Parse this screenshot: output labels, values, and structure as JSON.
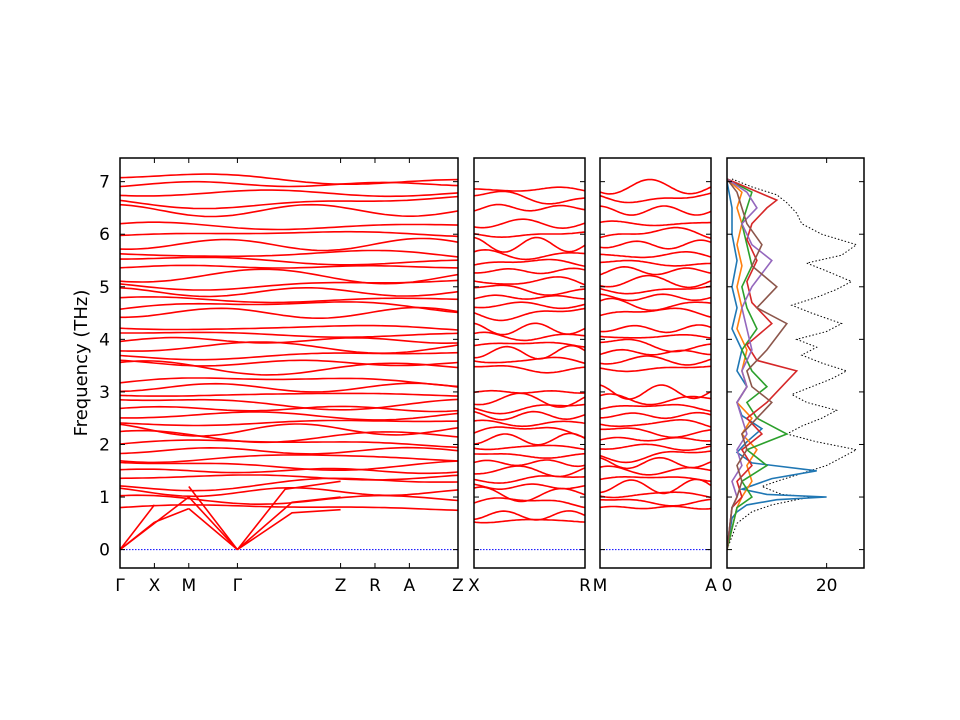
{
  "chart_data": {
    "type": "line",
    "title": "",
    "ylabel": "Frequency (THz)",
    "ylim": [
      -0.35,
      7.45
    ],
    "yticks": [
      0,
      1,
      2,
      3,
      4,
      5,
      6,
      7
    ],
    "colors": {
      "bands": "#ff0000",
      "zero_line": "#0000ff",
      "total_dos": "#000000",
      "pdos": [
        "#1f77b4",
        "#ff7f0e",
        "#2ca02c",
        "#d62728",
        "#9467bd",
        "#8c564b"
      ]
    },
    "panels": [
      {
        "name": "band-panel-1",
        "xticks": [
          {
            "label": "Γ",
            "pos": 0.0
          },
          {
            "label": "X",
            "pos": 0.5
          },
          {
            "label": "M",
            "pos": 1.0
          },
          {
            "label": "Γ",
            "pos": 1.707
          },
          {
            "label": "Z",
            "pos": 3.207
          },
          {
            "label": "R",
            "pos": 3.707
          },
          {
            "label": "A",
            "pos": 4.207
          },
          {
            "label": "Z",
            "pos": 4.914
          }
        ],
        "acoustic_branches": [
          {
            "x": [
              0,
              0.5
            ],
            "y": [
              0,
              0.52
            ]
          },
          {
            "x": [
              0,
              0.5
            ],
            "y": [
              0,
              0.85
            ]
          },
          {
            "x": [
              0,
              1.0
            ],
            "y": [
              0,
              1.0
            ]
          },
          {
            "x": [
              0.5,
              1.0
            ],
            "y": [
              0.52,
              0.78
            ]
          },
          {
            "x": [
              1.0,
              1.707
            ],
            "y": [
              0.78,
              0
            ]
          },
          {
            "x": [
              1.0,
              1.707
            ],
            "y": [
              1.0,
              0
            ]
          },
          {
            "x": [
              1.0,
              1.707
            ],
            "y": [
              1.2,
              0
            ]
          },
          {
            "x": [
              1.707,
              2.5,
              3.207
            ],
            "y": [
              0,
              0.7,
              0.76
            ]
          },
          {
            "x": [
              1.707,
              2.5,
              3.207
            ],
            "y": [
              0,
              0.9,
              1.0
            ]
          },
          {
            "x": [
              1.707,
              2.4,
              3.207
            ],
            "y": [
              0,
              1.15,
              1.3
            ]
          }
        ],
        "bands": [
          0.8,
          0.95,
          1.1,
          1.25,
          1.38,
          1.5,
          1.62,
          1.75,
          1.88,
          2.02,
          2.15,
          2.28,
          2.42,
          2.55,
          2.68,
          2.8,
          2.95,
          3.08,
          3.2,
          3.45,
          3.55,
          3.7,
          3.85,
          3.98,
          4.1,
          4.22,
          4.5,
          4.62,
          4.75,
          4.9,
          5.05,
          5.2,
          5.38,
          5.5,
          5.62,
          5.8,
          6.0,
          6.15,
          6.45,
          6.62,
          6.78,
          6.95,
          7.05
        ]
      },
      {
        "name": "band-panel-2",
        "xticks": [
          {
            "label": "X",
            "pos": 0.0
          },
          {
            "label": "R",
            "pos": 1.5
          }
        ],
        "acoustic_branches": [],
        "bands": [
          0.55,
          0.65,
          0.9,
          1.05,
          1.2,
          1.35,
          1.5,
          1.65,
          1.8,
          1.95,
          2.1,
          2.25,
          2.4,
          2.55,
          2.7,
          2.85,
          3.0,
          3.45,
          3.6,
          3.75,
          3.9,
          4.05,
          4.2,
          4.5,
          4.65,
          4.8,
          4.95,
          5.1,
          5.3,
          5.45,
          5.6,
          5.8,
          6.0,
          6.2,
          6.5,
          6.7,
          6.85
        ]
      },
      {
        "name": "band-panel-3",
        "xticks": [
          {
            "label": "M",
            "pos": 0.0
          },
          {
            "label": "A",
            "pos": 1.5
          }
        ],
        "acoustic_branches": [],
        "bands": [
          0.8,
          0.92,
          1.05,
          1.2,
          1.35,
          1.5,
          1.65,
          1.8,
          1.95,
          2.1,
          2.25,
          2.4,
          2.55,
          2.7,
          2.85,
          3.0,
          3.45,
          3.6,
          3.75,
          3.9,
          4.05,
          4.2,
          4.5,
          4.65,
          4.8,
          4.95,
          5.1,
          5.3,
          5.45,
          5.6,
          5.8,
          6.0,
          6.2,
          6.45,
          6.7,
          6.9
        ]
      }
    ],
    "dos_panel": {
      "name": "dos-panel",
      "xlim": [
        0,
        27.5
      ],
      "xticks": [
        0,
        20
      ],
      "total_dos": {
        "x": [
          0,
          2,
          5,
          9,
          14,
          17,
          11,
          7,
          10,
          15,
          20,
          23,
          26,
          18,
          12,
          15,
          19,
          22,
          16,
          13,
          17,
          21,
          24,
          19,
          15,
          18,
          14,
          20,
          23,
          17,
          13,
          18,
          22,
          25,
          20,
          16,
          23,
          26,
          19,
          15,
          14,
          12,
          10,
          5,
          1
        ],
        "y": [
          0.0,
          0.5,
          0.72,
          0.85,
          0.95,
          1.0,
          1.05,
          1.2,
          1.3,
          1.45,
          1.6,
          1.75,
          1.9,
          2.05,
          2.2,
          2.35,
          2.5,
          2.65,
          2.8,
          2.95,
          3.1,
          3.25,
          3.4,
          3.55,
          3.7,
          3.85,
          4.0,
          4.15,
          4.3,
          4.5,
          4.65,
          4.8,
          4.95,
          5.1,
          5.3,
          5.45,
          5.6,
          5.8,
          6.0,
          6.2,
          6.4,
          6.6,
          6.75,
          6.9,
          7.05
        ]
      },
      "pdos": [
        {
          "x": [
            0,
            1,
            2,
            4,
            10,
            20,
            8,
            3,
            9,
            18,
            5,
            2,
            4,
            7,
            3,
            2,
            4,
            2,
            3,
            1,
            2,
            1,
            2,
            1,
            1,
            0
          ],
          "y": [
            0.0,
            0.6,
            0.72,
            0.85,
            0.95,
            1.0,
            1.05,
            1.15,
            1.35,
            1.5,
            1.65,
            1.85,
            2.05,
            2.3,
            2.55,
            2.8,
            3.1,
            3.4,
            3.8,
            4.2,
            4.6,
            5.0,
            5.5,
            6.0,
            6.5,
            7.0
          ]
        },
        {
          "x": [
            0,
            2,
            3,
            5,
            4,
            6,
            3,
            5,
            2,
            4,
            3,
            4,
            2,
            3,
            2,
            3,
            2,
            3,
            2,
            3,
            0
          ],
          "y": [
            0.0,
            0.8,
            1.0,
            1.3,
            1.6,
            1.9,
            2.2,
            2.5,
            2.8,
            3.1,
            3.4,
            3.8,
            4.2,
            4.6,
            5.0,
            5.4,
            5.8,
            6.2,
            6.5,
            6.8,
            7.05
          ]
        },
        {
          "x": [
            0,
            2,
            5,
            3,
            8,
            4,
            12,
            6,
            4,
            8,
            5,
            3,
            6,
            4,
            3,
            5,
            4,
            3,
            4,
            5,
            0
          ],
          "y": [
            0.0,
            0.8,
            1.0,
            1.3,
            1.6,
            1.9,
            2.2,
            2.5,
            2.8,
            3.1,
            3.4,
            3.8,
            4.2,
            4.6,
            5.0,
            5.4,
            5.8,
            6.2,
            6.5,
            6.8,
            7.05
          ]
        },
        {
          "x": [
            0,
            1,
            3,
            2,
            5,
            3,
            7,
            4,
            8,
            14,
            6,
            4,
            9,
            5,
            4,
            6,
            4,
            5,
            8,
            10,
            0
          ],
          "y": [
            0.0,
            0.8,
            1.0,
            1.3,
            1.6,
            1.9,
            2.2,
            2.5,
            2.8,
            3.4,
            3.6,
            3.9,
            4.3,
            4.7,
            5.1,
            5.5,
            5.9,
            6.2,
            6.5,
            6.65,
            7.05
          ]
        },
        {
          "x": [
            0,
            1,
            2,
            1,
            3,
            2,
            4,
            3,
            2,
            4,
            3,
            5,
            4,
            3,
            5,
            9,
            5,
            3,
            6,
            4,
            0
          ],
          "y": [
            0.0,
            0.8,
            1.0,
            1.3,
            1.6,
            1.9,
            2.2,
            2.5,
            2.8,
            3.1,
            3.4,
            3.8,
            4.2,
            4.6,
            5.0,
            5.5,
            5.8,
            6.2,
            6.5,
            6.8,
            7.05
          ]
        },
        {
          "x": [
            0,
            1,
            2,
            3,
            2,
            4,
            3,
            6,
            9,
            5,
            4,
            8,
            12,
            6,
            10,
            5,
            7,
            4,
            3,
            2,
            0
          ],
          "y": [
            0.0,
            0.8,
            1.0,
            1.3,
            1.6,
            1.9,
            2.2,
            2.5,
            2.8,
            3.1,
            3.4,
            3.8,
            4.3,
            4.6,
            5.0,
            5.4,
            5.8,
            6.2,
            6.5,
            6.8,
            7.05
          ]
        }
      ]
    }
  }
}
